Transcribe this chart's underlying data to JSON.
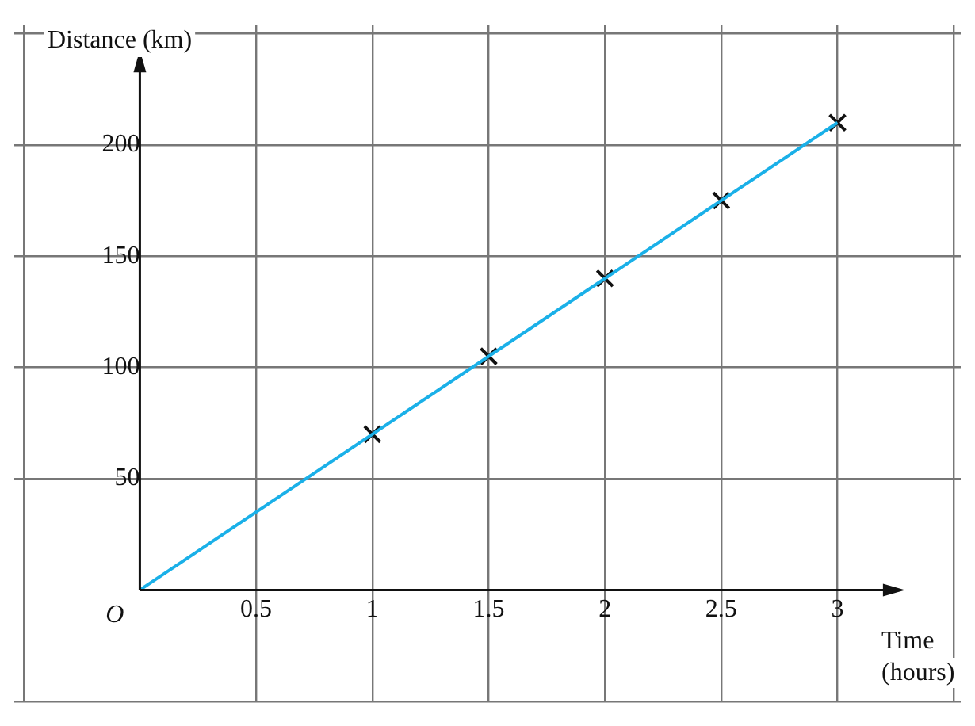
{
  "chart_data": {
    "type": "line",
    "xlabel": "Time (hours)",
    "ylabel": "Distance (km)",
    "xlim": [
      -0.54,
      3.53
    ],
    "ylim": [
      -50,
      254
    ],
    "xticks": [
      {
        "value": -0.5,
        "label": null
      },
      0.5,
      1,
      1.5,
      2,
      2.5,
      3,
      {
        "value": 3.5,
        "label": null
      }
    ],
    "yticks": [
      {
        "value": -50,
        "label": null
      },
      50,
      100,
      150,
      200,
      {
        "value": 250,
        "label": null
      }
    ],
    "grid": true,
    "legend": false,
    "series": [
      {
        "color": "#1ab0e8",
        "x": [
          0,
          3
        ],
        "values": [
          0,
          210
        ],
        "marker": "none"
      },
      {
        "type": "scatter",
        "color": "#111111",
        "x": [
          1,
          1.5,
          2,
          2.5,
          3
        ],
        "values": [
          70,
          105,
          140,
          175,
          210
        ],
        "marker": "cross"
      }
    ],
    "annotations": [
      {
        "text": "O",
        "x": 0,
        "y": 0
      }
    ]
  }
}
